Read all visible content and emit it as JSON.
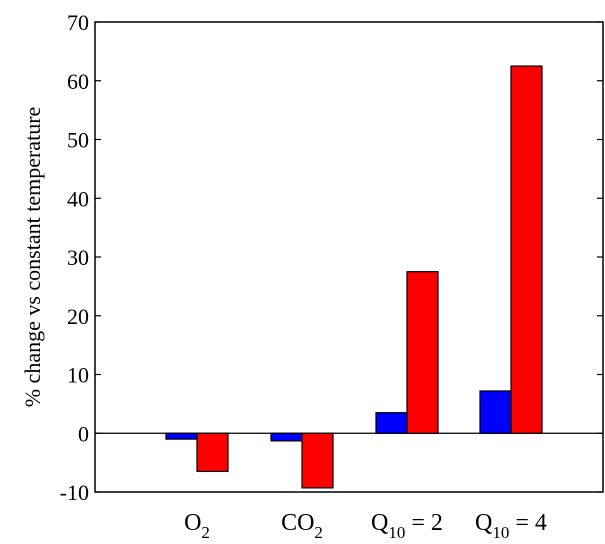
{
  "chart_data": {
    "type": "bar",
    "title": "",
    "xlabel": "",
    "ylabel": "% change vs constant temperature",
    "ylim": [
      -10,
      70
    ],
    "yticks": [
      -10,
      0,
      10,
      20,
      30,
      40,
      50,
      60,
      70
    ],
    "categories": [
      {
        "base": "O",
        "sub": "2",
        "suffix": ""
      },
      {
        "base": "CO",
        "sub": "2",
        "suffix": ""
      },
      {
        "base": "Q",
        "sub": "10",
        "suffix": " = 2"
      },
      {
        "base": "Q",
        "sub": "10",
        "suffix": " = 4"
      }
    ],
    "series": [
      {
        "color": "#0000ff",
        "values": [
          -1,
          -1.3,
          3.5,
          7.2
        ]
      },
      {
        "color": "#ff0000",
        "values": [
          -6.5,
          -9.3,
          27.5,
          62.5
        ]
      }
    ],
    "grid": false,
    "zero_line": true
  }
}
